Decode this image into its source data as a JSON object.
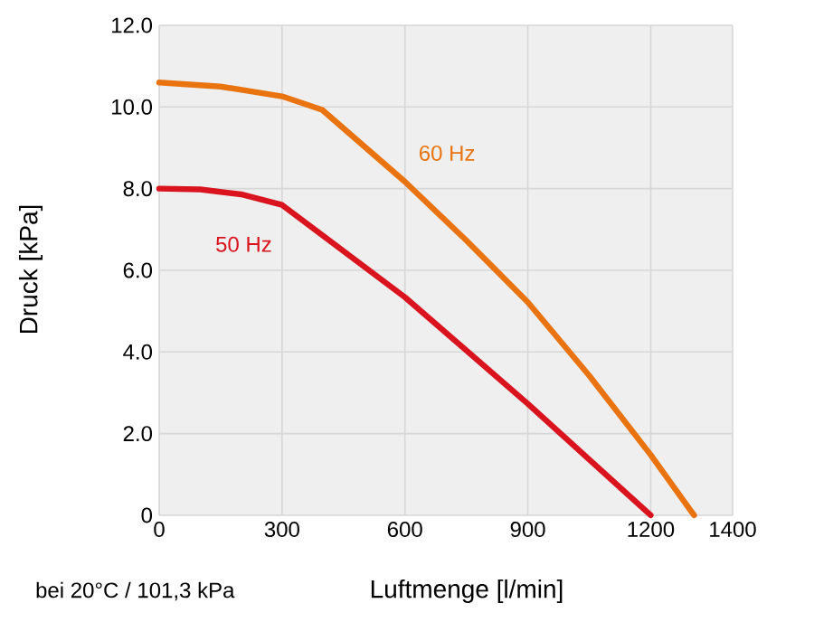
{
  "chart_data": {
    "type": "line",
    "xlabel": "Luftmenge [l/min]",
    "ylabel": "Druck [kPa]",
    "annotations": [
      "bei 20°C / 101,3 kPa"
    ],
    "xlim": [
      0,
      1400
    ],
    "xticks": [
      0,
      300,
      600,
      900,
      1200,
      1400
    ],
    "ylim": [
      0,
      12
    ],
    "yticks": [
      0,
      {
        "value": 2,
        "label": "2.0"
      },
      {
        "value": 4,
        "label": "4.0"
      },
      {
        "value": 6,
        "label": "6.0"
      },
      {
        "value": 8,
        "label": "8.0"
      },
      {
        "value": 10,
        "label": "10.0"
      },
      {
        "value": 12,
        "label": "12.0"
      }
    ],
    "grid": true,
    "legend": false,
    "marker": "none",
    "line_style": "solid",
    "series": [
      {
        "name": "60 Hz",
        "color": "#e8730f",
        "x": [
          0,
          150,
          300,
          398,
          600,
          750,
          900,
          1050,
          1200,
          1306
        ],
        "values": [
          10.6,
          10.5,
          10.26,
          9.93,
          8.17,
          6.73,
          5.22,
          3.42,
          1.48,
          0
        ]
      },
      {
        "name": "50 Hz",
        "color": "#d9141e",
        "x": [
          0,
          100,
          200,
          300,
          600,
          900,
          1200
        ],
        "values": [
          8.0,
          7.98,
          7.86,
          7.6,
          5.34,
          2.73,
          0
        ]
      }
    ]
  }
}
